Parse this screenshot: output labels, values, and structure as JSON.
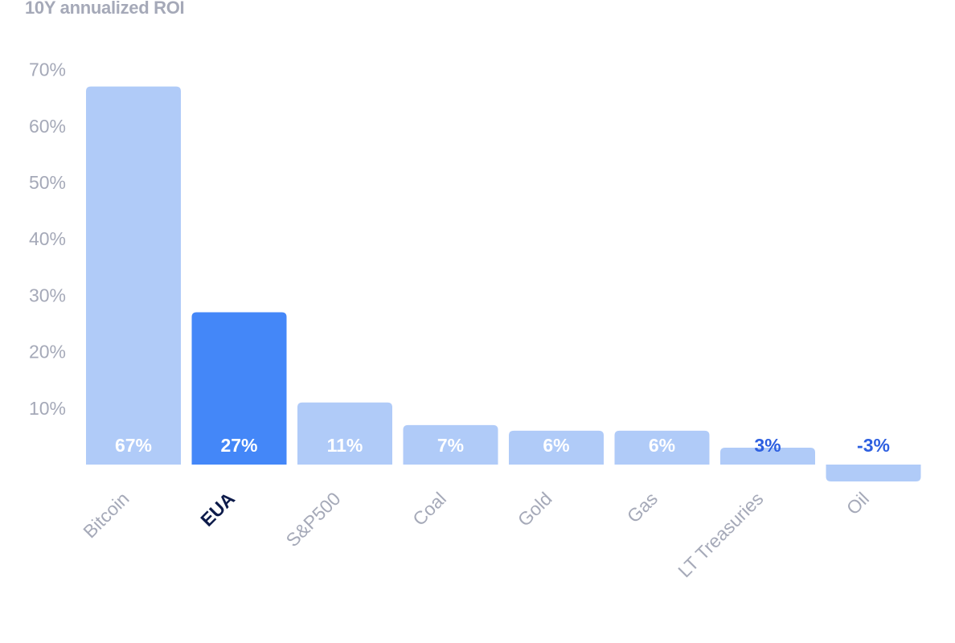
{
  "chart_data": {
    "type": "bar",
    "title": "10Y annualized ROI",
    "xlabel": "",
    "ylabel": "",
    "categories": [
      "Bitcoin",
      "EUA",
      "S&P500",
      "Coal",
      "Gold",
      "Gas",
      "LT Treasuries",
      "Oil"
    ],
    "values": [
      67,
      27,
      11,
      7,
      6,
      6,
      3,
      -3
    ],
    "value_labels": [
      "67%",
      "27%",
      "11%",
      "7%",
      "6%",
      "6%",
      "3%",
      "-3%"
    ],
    "highlight_category": "EUA",
    "ylim": [
      -3,
      70
    ],
    "yticks": [
      10,
      20,
      30,
      40,
      50,
      60,
      70
    ],
    "ytick_labels": [
      "10%",
      "20%",
      "30%",
      "40%",
      "50%",
      "60%",
      "70%"
    ],
    "grid": false,
    "legend": "none",
    "colors": {
      "bar": "#b0cbf8",
      "bar_highlight": "#4487f8",
      "axis_text": "#a5a9b8",
      "value_text_on_bar": "#ffffff",
      "value_text_outside": "#2d5fe0",
      "highlight_label": "#0d1b4a",
      "title": "#a5a9b8"
    }
  }
}
